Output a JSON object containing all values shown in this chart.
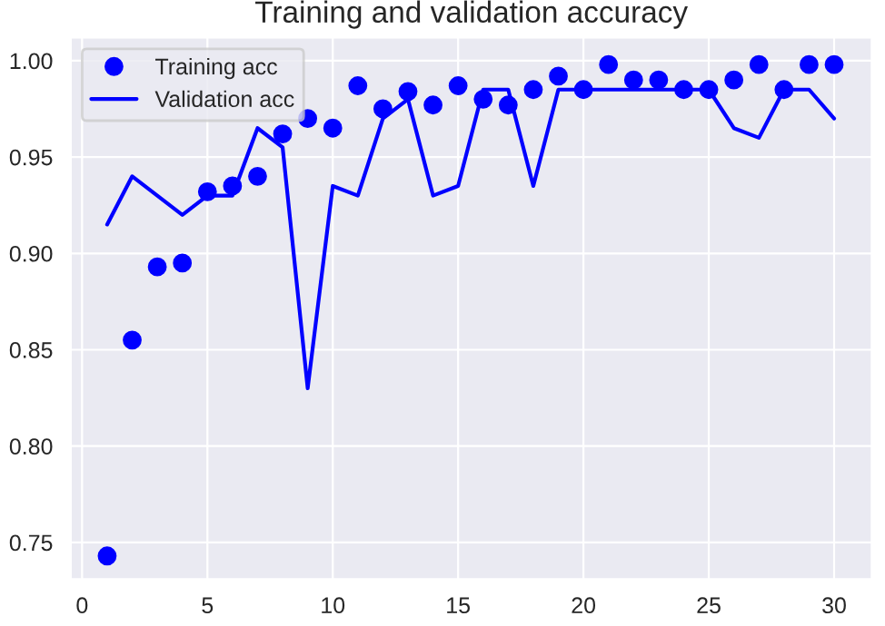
{
  "chart_data": {
    "type": "line",
    "title": "Training and validation accuracy",
    "x": [
      1,
      2,
      3,
      4,
      5,
      6,
      7,
      8,
      9,
      10,
      11,
      12,
      13,
      14,
      15,
      16,
      17,
      18,
      19,
      20,
      21,
      22,
      23,
      24,
      25,
      26,
      27,
      28,
      29,
      30
    ],
    "series": [
      {
        "name": "Training acc",
        "type": "scatter",
        "marker": "circle",
        "color": "#0000ff",
        "values": [
          0.743,
          0.855,
          0.893,
          0.895,
          0.932,
          0.935,
          0.94,
          0.962,
          0.97,
          0.965,
          0.987,
          0.975,
          0.984,
          0.977,
          0.987,
          0.98,
          0.977,
          0.985,
          0.992,
          0.985,
          0.998,
          0.99,
          0.99,
          0.985,
          0.985,
          0.99,
          0.998,
          0.985,
          0.998,
          0.998
        ]
      },
      {
        "name": "Validation acc",
        "line_style": "solid",
        "color": "#0000ff",
        "values": [
          0.915,
          0.94,
          0.93,
          0.92,
          0.93,
          0.93,
          0.965,
          0.955,
          0.83,
          0.935,
          0.93,
          0.97,
          0.98,
          0.93,
          0.935,
          0.985,
          0.985,
          0.935,
          0.985,
          0.985,
          0.985,
          0.985,
          0.985,
          0.985,
          0.985,
          0.965,
          0.96,
          0.985,
          0.985,
          0.97
        ]
      }
    ],
    "xlim": [
      -0.45,
      31.5
    ],
    "ylim": [
      0.731,
      1.012
    ],
    "xticks": [
      0,
      5,
      10,
      15,
      20,
      25,
      30
    ],
    "yticks": [
      {
        "value": 0.75,
        "label": "0.75"
      },
      {
        "value": 0.8,
        "label": "0.80"
      },
      {
        "value": 0.85,
        "label": "0.85"
      },
      {
        "value": 0.9,
        "label": "0.90"
      },
      {
        "value": 0.95,
        "label": "0.95"
      },
      {
        "value": 1.0,
        "label": "1.00"
      }
    ],
    "grid": true,
    "legend": "top left"
  }
}
